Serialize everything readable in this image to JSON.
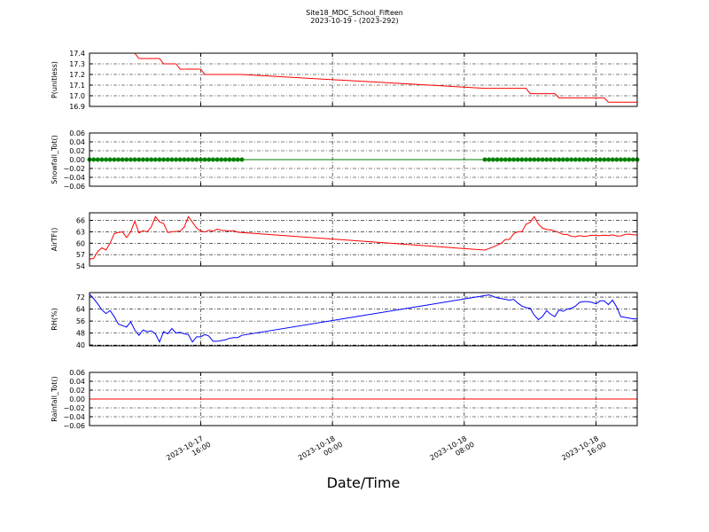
{
  "chart_data": {
    "type": "line",
    "title": "Site18_MDC_School_Fifteen",
    "subtitle": "2023-10-19 - (2023-292)",
    "xlabel": "Date/Time",
    "grid": true,
    "xlim": [
      "2023-10-17T09:15",
      "2023-10-18T18:30"
    ],
    "xticks": [
      {
        "value": "2023-10-17T16:00",
        "label": [
          "2023-10-17",
          "16:00"
        ]
      },
      {
        "value": "2023-10-18T00:00",
        "label": [
          "2023-10-18",
          "00:00"
        ]
      },
      {
        "value": "2023-10-18T08:00",
        "label": [
          "2023-10-18",
          "08:00"
        ]
      },
      {
        "value": "2023-10-18T16:00",
        "label": [
          "2023-10-18",
          "16:00"
        ]
      }
    ],
    "x": [
      "2023-10-17T09:15",
      "2023-10-17T09:30",
      "2023-10-17T09:45",
      "2023-10-17T10:00",
      "2023-10-17T10:15",
      "2023-10-17T10:30",
      "2023-10-17T10:45",
      "2023-10-17T11:00",
      "2023-10-17T11:15",
      "2023-10-17T11:30",
      "2023-10-17T11:45",
      "2023-10-17T12:00",
      "2023-10-17T12:15",
      "2023-10-17T12:30",
      "2023-10-17T12:45",
      "2023-10-17T13:00",
      "2023-10-17T13:15",
      "2023-10-17T13:30",
      "2023-10-17T13:45",
      "2023-10-17T14:00",
      "2023-10-17T14:15",
      "2023-10-17T14:30",
      "2023-10-17T14:45",
      "2023-10-17T15:00",
      "2023-10-17T15:15",
      "2023-10-17T15:30",
      "2023-10-17T15:45",
      "2023-10-17T16:00",
      "2023-10-17T16:15",
      "2023-10-17T16:30",
      "2023-10-17T16:45",
      "2023-10-17T17:00",
      "2023-10-17T17:15",
      "2023-10-17T17:30",
      "2023-10-17T17:45",
      "2023-10-17T18:00",
      "2023-10-17T18:15",
      "2023-10-17T18:30",
      "2023-10-18T09:15",
      "2023-10-18T09:30",
      "2023-10-18T09:45",
      "2023-10-18T10:00",
      "2023-10-18T10:15",
      "2023-10-18T10:30",
      "2023-10-18T10:45",
      "2023-10-18T11:00",
      "2023-10-18T11:15",
      "2023-10-18T11:30",
      "2023-10-18T11:45",
      "2023-10-18T12:00",
      "2023-10-18T12:15",
      "2023-10-18T12:30",
      "2023-10-18T12:45",
      "2023-10-18T13:00",
      "2023-10-18T13:15",
      "2023-10-18T13:30",
      "2023-10-18T13:45",
      "2023-10-18T14:00",
      "2023-10-18T14:15",
      "2023-10-18T14:30",
      "2023-10-18T14:45",
      "2023-10-18T15:00",
      "2023-10-18T15:15",
      "2023-10-18T15:30",
      "2023-10-18T15:45",
      "2023-10-18T16:00",
      "2023-10-18T16:15",
      "2023-10-18T16:30",
      "2023-10-18T16:45",
      "2023-10-18T17:00",
      "2023-10-18T17:15",
      "2023-10-18T17:30",
      "2023-10-18T17:45",
      "2023-10-18T18:00",
      "2023-10-18T18:15",
      "2023-10-18T18:30"
    ],
    "panels": [
      {
        "ylabel": "P(unitless)",
        "ylim": [
          16.9,
          17.4
        ],
        "yticks": [
          16.9,
          {
            "value": 17,
            "label": "17.0"
          },
          17.1,
          17.2,
          17.3,
          17.4
        ],
        "series": [
          {
            "color": "#ff0000",
            "values": [
              17.4,
              17.4,
              17.4,
              17.4,
              17.4,
              17.4,
              17.4,
              17.4,
              17.4,
              17.4,
              17.4,
              17.4,
              17.35,
              17.35,
              17.35,
              17.35,
              17.35,
              17.35,
              17.3,
              17.3,
              17.3,
              17.3,
              17.25,
              17.25,
              17.25,
              17.25,
              17.25,
              17.25,
              17.2,
              17.2,
              17.2,
              17.2,
              17.2,
              17.2,
              17.2,
              17.2,
              17.2,
              17.2,
              17.07,
              17.07,
              17.07,
              17.07,
              17.07,
              17.07,
              17.07,
              17.07,
              17.07,
              17.07,
              17.07,
              17.02,
              17.02,
              17.02,
              17.02,
              17.02,
              17.02,
              17.02,
              16.98,
              16.98,
              16.98,
              16.98,
              16.98,
              16.98,
              16.98,
              16.98,
              16.98,
              16.98,
              16.98,
              16.98,
              16.94,
              16.94,
              16.94,
              16.94,
              16.94,
              16.94,
              16.94,
              16.94
            ]
          }
        ]
      },
      {
        "ylabel": "Snowfall_Tot()",
        "ylim": [
          -0.06,
          0.06
        ],
        "yticks": [
          {
            "value": -0.06,
            "label": "−0.06"
          },
          {
            "value": -0.04,
            "label": "−0.04"
          },
          {
            "value": -0.02,
            "label": "−0.02"
          },
          {
            "value": 0,
            "label": "0.00"
          },
          0.02,
          0.04,
          0.06
        ],
        "series": [
          {
            "color": "#008000",
            "marker": "circle",
            "values": [
              0,
              0,
              0,
              0,
              0,
              0,
              0,
              0,
              0,
              0,
              0,
              0,
              0,
              0,
              0,
              0,
              0,
              0,
              0,
              0,
              0,
              0,
              0,
              0,
              0,
              0,
              0,
              0,
              0,
              0,
              0,
              0,
              0,
              0,
              0,
              0,
              0,
              0,
              0,
              0,
              0,
              0,
              0,
              0,
              0,
              0,
              0,
              0,
              0,
              0,
              0,
              0,
              0,
              0,
              0,
              0,
              0,
              0,
              0,
              0,
              0,
              0,
              0,
              0,
              0,
              0,
              0,
              0,
              0,
              0,
              0,
              0,
              0,
              0,
              0,
              0
            ]
          }
        ]
      },
      {
        "ylabel": "AirTF()",
        "ylim": [
          54,
          68
        ],
        "yticks": [
          54,
          57,
          60,
          63,
          66
        ],
        "series": [
          {
            "color": "#ff0000",
            "values": [
              55.8,
              56.0,
              57.8,
              58.8,
              58.2,
              60.0,
              62.5,
              62.8,
              63.0,
              61.5,
              63.0,
              65.8,
              62.7,
              63.3,
              63.0,
              64.3,
              67.0,
              65.6,
              65.2,
              62.8,
              63.0,
              63.1,
              63.2,
              64.2,
              67.0,
              65.5,
              64.0,
              63.2,
              63.0,
              63.4,
              63.2,
              63.7,
              63.4,
              63.3,
              63.2,
              63.3,
              62.9,
              62.8,
              58.2,
              58.6,
              59.0,
              59.5,
              60.0,
              61.0,
              61.0,
              62.5,
              63.0,
              63.0,
              65.0,
              65.5,
              67.0,
              65.0,
              64.0,
              63.6,
              63.5,
              63.2,
              62.8,
              62.3,
              62.3,
              61.8,
              61.7,
              62.0,
              61.8,
              61.9,
              62.1,
              62.0,
              62.0,
              62.1,
              62.0,
              62.2,
              61.9,
              61.9,
              62.3,
              62.4,
              62.2,
              62.2
            ]
          }
        ]
      },
      {
        "ylabel": "RH(%)",
        "ylim": [
          39.5,
          75
        ],
        "yticks": [
          40,
          48,
          56,
          64,
          72
        ],
        "series": [
          {
            "color": "#0000ff",
            "values": [
              74,
              71,
              67.5,
              63.5,
              61,
              63,
              59,
              54,
              53,
              52,
              55.5,
              50,
              46.5,
              50,
              49,
              49.5,
              47.5,
              42,
              49,
              47.5,
              51,
              48,
              48.5,
              47.5,
              47,
              42,
              45.5,
              45.5,
              47,
              46,
              42.5,
              42.5,
              43,
              43.5,
              44.5,
              45,
              45,
              46.5,
              73,
              73.5,
              72.5,
              71.5,
              71,
              70.5,
              70,
              70.5,
              68,
              66,
              65,
              64.5,
              60,
              57,
              59,
              63,
              60.5,
              59,
              63.5,
              62.5,
              64,
              64.5,
              66,
              68.5,
              69,
              69,
              68.5,
              67.5,
              69.5,
              69.5,
              67,
              70,
              65.5,
              59,
              58.5,
              58,
              57.5,
              57.5
            ]
          }
        ]
      },
      {
        "ylabel": "Rainfall_Tot()",
        "ylim": [
          -0.06,
          0.06
        ],
        "yticks": [
          {
            "value": -0.06,
            "label": "−0.06"
          },
          {
            "value": -0.04,
            "label": "−0.04"
          },
          {
            "value": -0.02,
            "label": "−0.02"
          },
          {
            "value": 0,
            "label": "0.00"
          },
          0.02,
          0.04,
          0.06
        ],
        "series": [
          {
            "color": "#ff0000",
            "values": [
              0,
              0,
              0,
              0,
              0,
              0,
              0,
              0,
              0,
              0,
              0,
              0,
              0,
              0,
              0,
              0,
              0,
              0,
              0,
              0,
              0,
              0,
              0,
              0,
              0,
              0,
              0,
              0,
              0,
              0,
              0,
              0,
              0,
              0,
              0,
              0,
              0,
              0,
              0,
              0,
              0,
              0,
              0,
              0,
              0,
              0,
              0,
              0,
              0,
              0,
              0,
              0,
              0,
              0,
              0,
              0,
              0,
              0,
              0,
              0,
              0,
              0,
              0,
              0,
              0,
              0,
              0,
              0,
              0,
              0,
              0,
              0,
              0,
              0,
              0,
              0
            ]
          }
        ]
      }
    ]
  }
}
